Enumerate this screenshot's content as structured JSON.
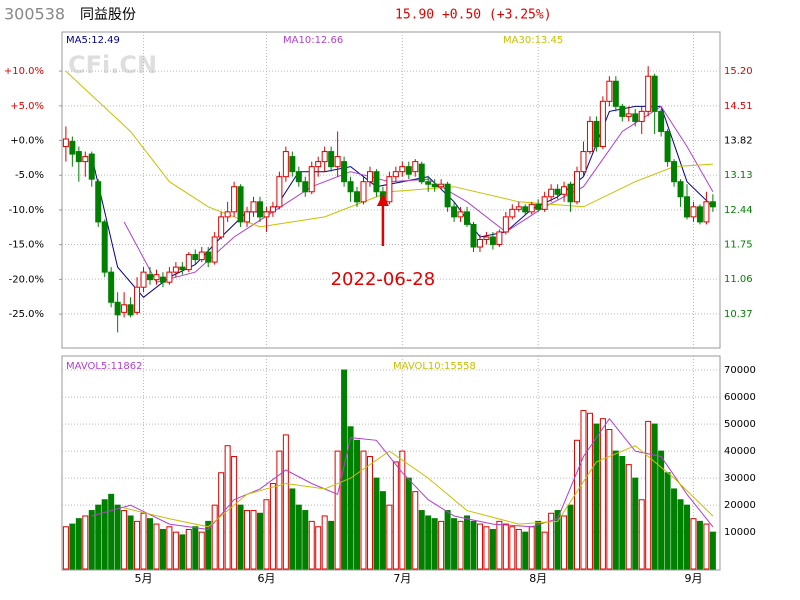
{
  "header": {
    "code": "300538",
    "name": "同益股份",
    "quote": "15.90 +0.50 (+3.25%)",
    "watermark": "CFi.CN"
  },
  "chart_data": [
    {
      "type": "candlestick",
      "xlim": [
        -0.6,
        101.1
      ],
      "xticks": [
        {
          "value": 12,
          "label": "5月"
        },
        {
          "value": 31,
          "label": "6月"
        },
        {
          "value": 52,
          "label": "7月"
        },
        {
          "value": 73,
          "label": "8月"
        },
        {
          "value": 97,
          "label": "9月"
        }
      ],
      "ylim": [
        9.69,
        15.98
      ],
      "yticks": [
        {
          "value": 15.2,
          "label": "15.20"
        },
        14.51,
        13.82,
        13.13,
        12.44,
        11.75,
        11.06,
        10.37
      ],
      "y2lim": [
        -29.88,
        15.63
      ],
      "y2ticks": [
        {
          "value": 10,
          "label": "+10.0%"
        },
        {
          "value": 5,
          "label": "+5.0%"
        },
        {
          "value": 0,
          "label": "+0.0%"
        },
        {
          "value": -5,
          "label": "-5.0%"
        },
        {
          "value": -10,
          "label": "-10.0%"
        },
        {
          "value": -15,
          "label": "-15.0%"
        },
        {
          "value": -20,
          "label": "-20.0%"
        },
        {
          "value": -25,
          "label": "-25.0%"
        }
      ],
      "grid": true,
      "up_color": "#e00000",
      "down_color": "#008000",
      "open": [
        13.7,
        13.8,
        13.6,
        13.4,
        13.55,
        13.0,
        12.2,
        11.2,
        10.6,
        10.4,
        10.55,
        10.4,
        10.9,
        11.15,
        11.05,
        11.1,
        11.0,
        11.2,
        11.3,
        11.25,
        11.55,
        11.45,
        11.6,
        11.4,
        11.9,
        12.3,
        12.4,
        12.9,
        12.2,
        12.4,
        12.6,
        12.3,
        12.4,
        12.5,
        13.1,
        13.5,
        13.2,
        13.0,
        12.8,
        13.3,
        13.4,
        13.6,
        13.3,
        13.4,
        13.0,
        12.8,
        12.6,
        13.0,
        13.2,
        12.8,
        12.6,
        13.1,
        13.2,
        13.3,
        13.2,
        13.35,
        13.0,
        12.95,
        12.9,
        12.95,
        12.5,
        12.3,
        12.4,
        12.15,
        11.7,
        11.85,
        11.9,
        11.75,
        12.0,
        12.3,
        12.45,
        12.5,
        12.4,
        12.55,
        12.45,
        12.7,
        12.85,
        12.75,
        12.95,
        12.6,
        13.2,
        13.6,
        14.2,
        13.7,
        14.6,
        15.0,
        14.5,
        14.3,
        14.35,
        14.2,
        14.4,
        15.1,
        14.4,
        14.0,
        13.4,
        13.0,
        12.7,
        12.3,
        12.5,
        12.2,
        12.6
      ],
      "close": [
        13.85,
        13.55,
        13.4,
        13.5,
        13.05,
        12.2,
        11.2,
        10.6,
        10.35,
        10.55,
        10.35,
        10.9,
        11.2,
        11.05,
        11.15,
        11.0,
        11.2,
        11.3,
        11.25,
        11.55,
        11.45,
        11.6,
        11.4,
        11.9,
        12.3,
        12.4,
        12.9,
        12.2,
        12.4,
        12.6,
        12.3,
        12.4,
        12.5,
        13.1,
        13.6,
        13.2,
        13.0,
        12.8,
        13.3,
        13.4,
        13.6,
        13.3,
        13.5,
        13.0,
        12.8,
        12.6,
        13.0,
        13.2,
        12.8,
        12.6,
        13.1,
        13.2,
        13.3,
        13.15,
        13.4,
        13.0,
        12.95,
        12.9,
        12.95,
        12.5,
        12.3,
        12.4,
        12.15,
        11.7,
        11.85,
        11.9,
        11.75,
        12.0,
        12.3,
        12.45,
        12.5,
        12.4,
        12.55,
        12.45,
        12.7,
        12.85,
        12.75,
        12.9,
        12.6,
        13.2,
        13.6,
        14.2,
        13.7,
        14.6,
        15.0,
        14.5,
        14.3,
        14.35,
        14.2,
        14.4,
        15.1,
        14.4,
        14.0,
        13.4,
        13.0,
        12.7,
        12.3,
        12.5,
        12.2,
        12.6,
        12.5
      ],
      "high": [
        14.1,
        13.9,
        13.7,
        13.6,
        13.6,
        13.05,
        12.25,
        11.3,
        10.8,
        10.8,
        10.7,
        11.1,
        11.3,
        11.3,
        11.25,
        11.2,
        11.3,
        11.4,
        11.4,
        11.6,
        11.65,
        11.7,
        11.7,
        12.0,
        12.4,
        12.6,
        13.0,
        12.95,
        12.5,
        12.7,
        12.7,
        12.5,
        12.6,
        13.2,
        13.7,
        13.6,
        13.3,
        13.1,
        13.4,
        13.5,
        13.7,
        13.7,
        14.0,
        13.5,
        13.1,
        12.9,
        13.1,
        13.3,
        13.25,
        12.9,
        13.2,
        13.3,
        13.4,
        13.4,
        13.45,
        13.4,
        13.1,
        13.05,
        13.05,
        13.0,
        12.6,
        12.5,
        12.5,
        12.2,
        11.95,
        12.0,
        12.0,
        12.05,
        12.4,
        12.55,
        12.6,
        12.55,
        12.6,
        12.65,
        12.8,
        12.95,
        12.95,
        13.0,
        13.0,
        13.3,
        13.8,
        14.3,
        14.3,
        14.7,
        15.1,
        15.1,
        14.55,
        14.5,
        14.45,
        14.5,
        15.3,
        15.15,
        14.45,
        14.05,
        13.45,
        13.05,
        12.95,
        12.6,
        12.55,
        12.8,
        12.75
      ],
      "low": [
        13.4,
        13.3,
        13.0,
        13.1,
        12.9,
        12.1,
        11.1,
        10.5,
        10.0,
        10.3,
        10.3,
        10.35,
        10.8,
        10.95,
        10.95,
        10.9,
        10.95,
        11.1,
        11.15,
        11.2,
        11.35,
        11.4,
        11.3,
        11.35,
        11.85,
        12.2,
        12.3,
        12.1,
        12.1,
        12.3,
        12.2,
        12.0,
        12.3,
        12.45,
        13.0,
        13.1,
        12.9,
        12.7,
        12.75,
        13.1,
        13.2,
        13.2,
        13.1,
        12.9,
        12.6,
        12.5,
        12.55,
        12.9,
        12.7,
        12.5,
        12.55,
        13.0,
        13.1,
        13.05,
        13.1,
        12.95,
        12.8,
        12.8,
        12.85,
        12.4,
        12.2,
        12.2,
        12.1,
        11.6,
        11.6,
        11.75,
        11.65,
        11.7,
        11.95,
        12.25,
        12.4,
        12.35,
        12.35,
        12.4,
        12.4,
        12.6,
        12.65,
        12.6,
        12.4,
        12.55,
        13.1,
        13.55,
        13.6,
        13.65,
        14.5,
        14.4,
        14.2,
        14.2,
        14.1,
        13.95,
        14.3,
        13.95,
        13.9,
        13.3,
        12.9,
        12.5,
        12.25,
        12.2,
        12.15,
        12.15,
        12.4
      ],
      "series": [
        {
          "name": "MA5:12.49",
          "color": "#00008b",
          "x": [
            4,
            8,
            12,
            16,
            20,
            24,
            28,
            32,
            36,
            40,
            44,
            48,
            52,
            56,
            60,
            64,
            68,
            72,
            76,
            80,
            84,
            88,
            92,
            96,
            100
          ],
          "values": [
            13.5,
            11.3,
            10.7,
            11.1,
            11.35,
            11.9,
            12.4,
            12.4,
            13.2,
            13.2,
            13.3,
            12.9,
            13.0,
            13.1,
            12.6,
            11.9,
            12.0,
            12.45,
            12.7,
            13.1,
            14.4,
            14.5,
            14.5,
            13.0,
            12.5
          ]
        },
        {
          "name": "MA10:12.66",
          "color": "#b040d0",
          "x": [
            9,
            14,
            20,
            26,
            32,
            38,
            44,
            50,
            56,
            62,
            68,
            74,
            80,
            86,
            92,
            96,
            100
          ],
          "values": [
            12.2,
            11.0,
            11.2,
            11.9,
            12.4,
            12.9,
            13.2,
            13.0,
            13.05,
            12.6,
            12.0,
            12.5,
            12.9,
            14.0,
            14.5,
            13.7,
            12.8
          ]
        },
        {
          "name": "MA30:13.45",
          "color": "#c8c000",
          "x": [
            0,
            10,
            16,
            22,
            30,
            40,
            50,
            60,
            70,
            80,
            88,
            94,
            100
          ],
          "values": [
            15.2,
            14.0,
            13.0,
            12.5,
            12.1,
            12.3,
            12.8,
            12.9,
            12.6,
            12.5,
            13.0,
            13.3,
            13.35
          ]
        }
      ],
      "annotation": {
        "text": "2022-06-28",
        "x": 49
      }
    },
    {
      "type": "bar",
      "xlim": [
        -0.6,
        101.1
      ],
      "ylim": [
        -4000,
        75200
      ],
      "yticks": [
        70000,
        60000,
        50000,
        40000,
        30000,
        20000,
        10000
      ],
      "grid": true,
      "values": [
        12000,
        13000,
        15000,
        16000,
        18000,
        20000,
        22000,
        24000,
        20000,
        18000,
        16000,
        14000,
        17000,
        15000,
        13000,
        11000,
        12000,
        10000,
        9000,
        11000,
        12000,
        10000,
        14000,
        20000,
        32000,
        42000,
        38000,
        20000,
        18000,
        18000,
        17000,
        22000,
        28000,
        40000,
        46000,
        26000,
        20000,
        18000,
        14000,
        12000,
        16000,
        14000,
        40000,
        70000,
        49000,
        44000,
        40000,
        38000,
        30000,
        25000,
        20000,
        36000,
        40000,
        30000,
        25000,
        18000,
        16000,
        15000,
        14000,
        18000,
        15000,
        14000,
        16000,
        14000,
        13000,
        12000,
        11000,
        14000,
        13000,
        12000,
        11000,
        10000,
        12000,
        14000,
        10000,
        17000,
        18000,
        16000,
        20000,
        44000,
        55000,
        54000,
        50000,
        52000,
        48000,
        40000,
        38000,
        35000,
        30000,
        22000,
        51000,
        50000,
        40000,
        32000,
        26000,
        22000,
        20000,
        15000,
        14000,
        13000,
        10000
      ],
      "series": [
        {
          "name": "MAVOL5:11862",
          "color": "#b040d0",
          "x": [
            4,
            10,
            16,
            22,
            26,
            30,
            34,
            38,
            42,
            44,
            48,
            52,
            56,
            60,
            66,
            72,
            76,
            80,
            84,
            88,
            92,
            96,
            100
          ],
          "values": [
            16000,
            20000,
            13000,
            11000,
            22000,
            26000,
            33000,
            28000,
            24000,
            45000,
            44000,
            32000,
            22000,
            16000,
            13000,
            12000,
            15000,
            38000,
            52000,
            40000,
            38000,
            24000,
            12000
          ]
        },
        {
          "name": "MAVOL10:15558",
          "color": "#c8c000",
          "x": [
            9,
            16,
            22,
            28,
            34,
            40,
            44,
            50,
            56,
            62,
            70,
            76,
            82,
            88,
            94,
            100
          ],
          "values": [
            19000,
            15000,
            12000,
            24000,
            28000,
            26000,
            30000,
            40000,
            30000,
            18000,
            13000,
            14000,
            36000,
            42000,
            30000,
            16000
          ]
        }
      ]
    }
  ]
}
